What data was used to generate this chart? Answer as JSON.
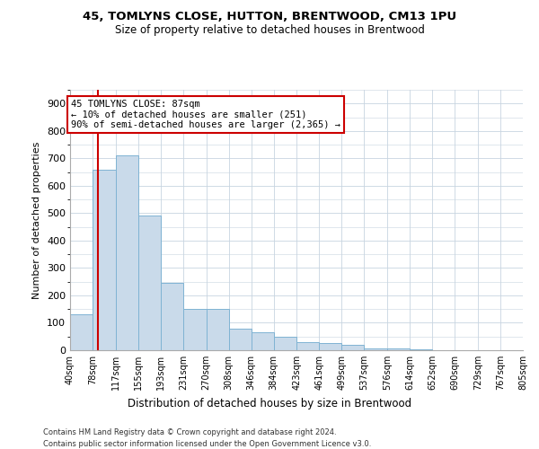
{
  "title": "45, TOMLYNS CLOSE, HUTTON, BRENTWOOD, CM13 1PU",
  "subtitle": "Size of property relative to detached houses in Brentwood",
  "xlabel": "Distribution of detached houses by size in Brentwood",
  "ylabel": "Number of detached properties",
  "footnote1": "Contains HM Land Registry data © Crown copyright and database right 2024.",
  "footnote2": "Contains public sector information licensed under the Open Government Licence v3.0.",
  "annotation_line1": "45 TOMLYNS CLOSE: 87sqm",
  "annotation_line2": "← 10% of detached houses are smaller (251)",
  "annotation_line3": "90% of semi-detached houses are larger (2,365) →",
  "property_size": 87,
  "bar_color": "#c9daea",
  "bar_edge_color": "#7fb3d3",
  "vline_color": "#cc0000",
  "annotation_box_edge_color": "#cc0000",
  "grid_color": "#c8d4e0",
  "bins": [
    40,
    78,
    117,
    155,
    193,
    231,
    270,
    308,
    346,
    384,
    423,
    461,
    499,
    537,
    576,
    614,
    652,
    690,
    729,
    767,
    805
  ],
  "bin_labels": [
    "40sqm",
    "78sqm",
    "117sqm",
    "155sqm",
    "193sqm",
    "231sqm",
    "270sqm",
    "308sqm",
    "346sqm",
    "384sqm",
    "423sqm",
    "461sqm",
    "499sqm",
    "537sqm",
    "576sqm",
    "614sqm",
    "652sqm",
    "690sqm",
    "729sqm",
    "767sqm",
    "805sqm"
  ],
  "counts": [
    130,
    660,
    710,
    490,
    245,
    150,
    150,
    80,
    65,
    50,
    30,
    25,
    20,
    5,
    5,
    2,
    1,
    1,
    0,
    1
  ],
  "ylim": [
    0,
    950
  ],
  "yticks": [
    0,
    100,
    200,
    300,
    400,
    500,
    600,
    700,
    800,
    900
  ]
}
